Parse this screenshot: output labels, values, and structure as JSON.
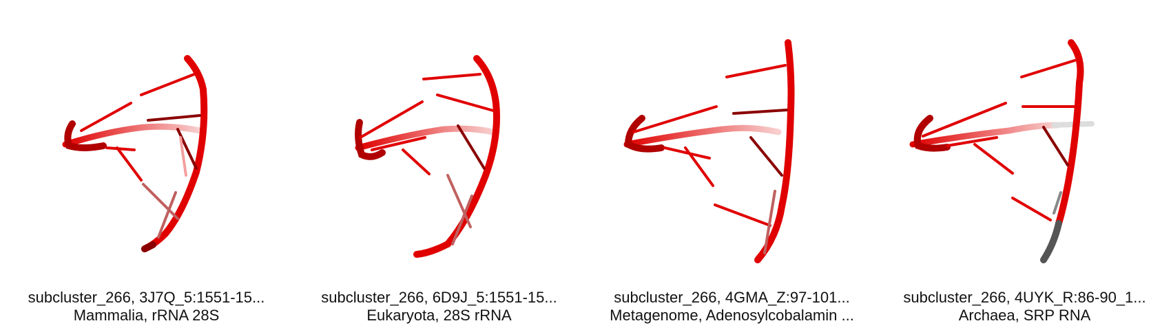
{
  "panels": [
    {
      "line1": "subcluster_266, 3J7Q_5:1551-15...",
      "line2": "Mammalia, rRNA 28S"
    },
    {
      "line1": "subcluster_266, 6D9J_5:1551-15...",
      "line2": "Eukaryota, 28S rRNA"
    },
    {
      "line1": "subcluster_266, 4GMA_Z:97-101...",
      "line2": "Metagenome, Adenosylcobalamin ..."
    },
    {
      "line1": "subcluster_266, 4UYK_R:86-90_1...",
      "line2": "Archaea, SRP RNA"
    }
  ],
  "colors": {
    "strand": "#e00000",
    "strand_dark": "#8a0000",
    "strand_faded": "#f4a0a0",
    "grey_segment": "#555555"
  }
}
